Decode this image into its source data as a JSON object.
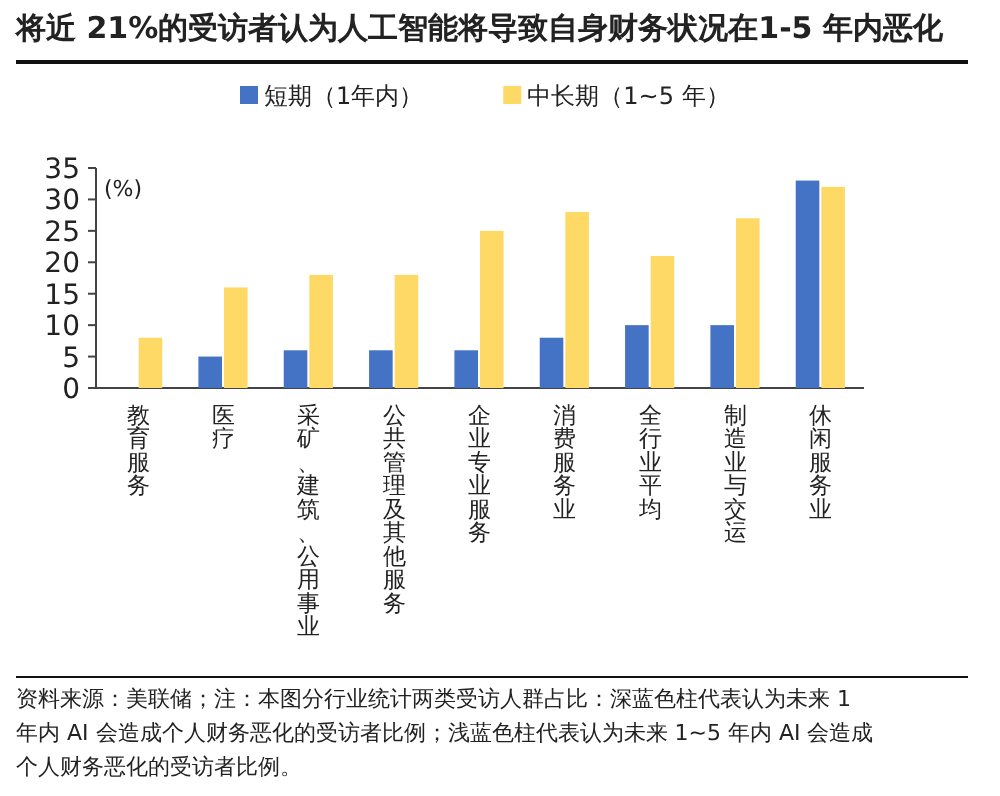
{
  "chart_data": {
    "type": "bar",
    "title": "将近 21%的受访者认为人工智能将导致自身财务状况在1-5 年内恶化",
    "ylabel": "(%)",
    "categories": [
      "教育服务",
      "医疗",
      "采矿、建筑、公用事业",
      "公共管理及其他服务",
      "企业专业服务",
      "消费服务业",
      "全行业平均",
      "制造业与交运",
      "休闲服务业"
    ],
    "series": [
      {
        "name": "短期（1年内）",
        "color": "#4472c4",
        "values": [
          null,
          5,
          6,
          6,
          6,
          8,
          10,
          10,
          33
        ]
      },
      {
        "name": "中长期（1~5 年）",
        "color": "#ffd966",
        "values": [
          8,
          16,
          18,
          18,
          25,
          28,
          21,
          27,
          32
        ]
      }
    ],
    "ylim": [
      0,
      35
    ],
    "yticks": [
      0,
      5,
      10,
      15,
      20,
      25,
      30,
      35
    ],
    "legend": "top",
    "grid": false,
    "annotations": [
      "资料来源：美联储；注：本图分行业统计两类受访人群占比：深蓝色柱代表认为未来 1 年内 AI 会造成个人财务恶化的受访者比例；浅蓝色柱代表认为未来 1~5 年内 AI 会造成个人财务恶化的受访者比例。"
    ]
  }
}
